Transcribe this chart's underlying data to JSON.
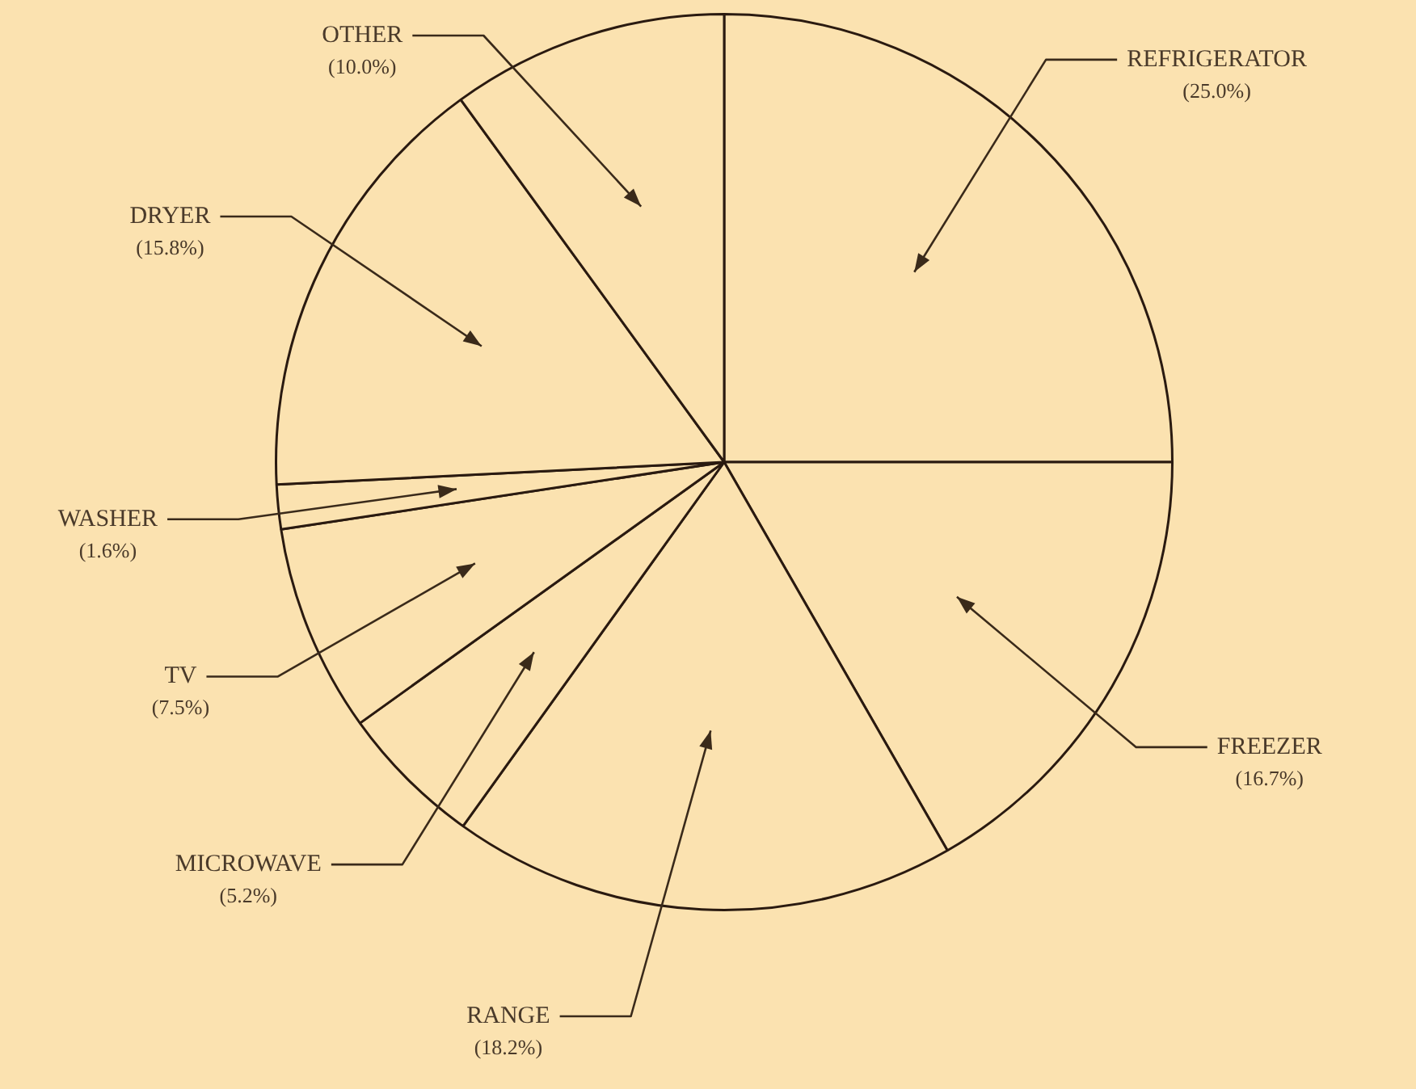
{
  "chart_data": {
    "type": "pie",
    "categories": [
      "REFRIGERATOR",
      "FREEZER",
      "RANGE",
      "MICROWAVE",
      "TV",
      "WASHER",
      "DRYER",
      "OTHER"
    ],
    "values": [
      25.0,
      16.7,
      18.2,
      5.2,
      7.5,
      1.6,
      15.8,
      10.0
    ],
    "value_labels": [
      "(25.0%)",
      "(16.7%)",
      "(18.2%)",
      "(5.2%)",
      "(7.5%)",
      "(1.6%)",
      "(15.8%)",
      "(10.0%)"
    ],
    "colors": [
      "#fbe2b0",
      "#fbe2b0",
      "#fbe2b0",
      "#fbe2b0",
      "#fbe2b0",
      "#fbe2b0",
      "#fbe2b0",
      "#fbe2b0"
    ],
    "legend": false
  }
}
